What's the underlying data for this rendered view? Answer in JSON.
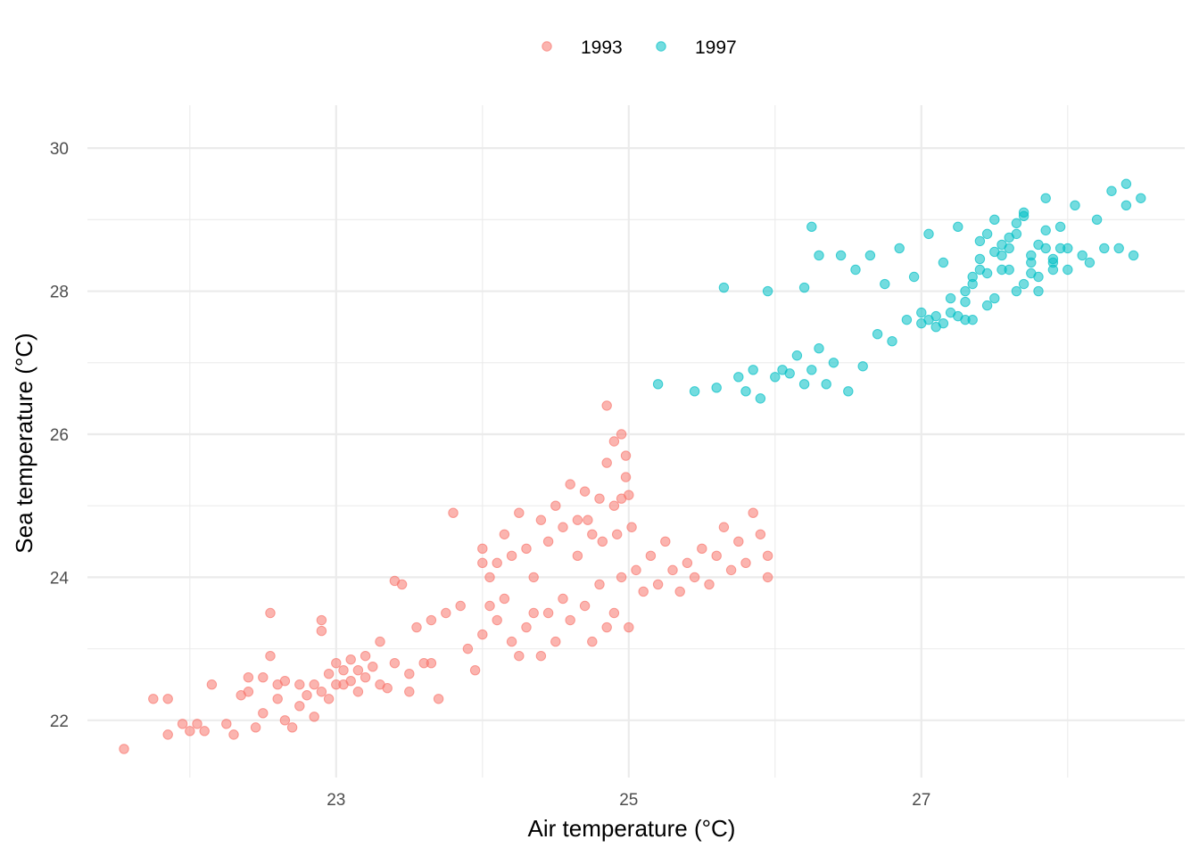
{
  "chart_data": {
    "type": "scatter",
    "xlabel": "Air temperature (°C)",
    "ylabel": "Sea temperature (°C)",
    "xlim": [
      21.3,
      28.8
    ],
    "ylim": [
      21.2,
      30.6
    ],
    "x_ticks": [
      23,
      25,
      27
    ],
    "y_ticks": [
      22,
      24,
      26,
      28,
      30
    ],
    "grid": true,
    "legend_position": "top",
    "series": [
      {
        "name": "1993",
        "color": "#F8766D",
        "points": [
          [
            21.55,
            21.6
          ],
          [
            21.75,
            22.3
          ],
          [
            21.85,
            22.3
          ],
          [
            21.85,
            21.8
          ],
          [
            21.95,
            21.95
          ],
          [
            22.0,
            21.85
          ],
          [
            22.05,
            21.95
          ],
          [
            22.1,
            21.85
          ],
          [
            22.15,
            22.5
          ],
          [
            22.25,
            21.95
          ],
          [
            22.3,
            21.8
          ],
          [
            22.35,
            22.35
          ],
          [
            22.4,
            22.4
          ],
          [
            22.4,
            22.6
          ],
          [
            22.45,
            21.9
          ],
          [
            22.5,
            22.1
          ],
          [
            22.5,
            22.6
          ],
          [
            22.55,
            22.9
          ],
          [
            22.55,
            23.5
          ],
          [
            22.6,
            22.5
          ],
          [
            22.6,
            22.3
          ],
          [
            22.65,
            22.55
          ],
          [
            22.65,
            22.0
          ],
          [
            22.7,
            21.9
          ],
          [
            22.75,
            22.5
          ],
          [
            22.75,
            22.2
          ],
          [
            22.8,
            22.35
          ],
          [
            22.85,
            22.5
          ],
          [
            22.85,
            22.05
          ],
          [
            22.9,
            22.4
          ],
          [
            22.9,
            23.4
          ],
          [
            22.9,
            23.25
          ],
          [
            22.95,
            22.65
          ],
          [
            22.95,
            22.3
          ],
          [
            23.0,
            22.5
          ],
          [
            23.0,
            22.8
          ],
          [
            23.05,
            22.7
          ],
          [
            23.05,
            22.5
          ],
          [
            23.1,
            22.85
          ],
          [
            23.1,
            22.55
          ],
          [
            23.15,
            22.7
          ],
          [
            23.15,
            22.4
          ],
          [
            23.2,
            22.9
          ],
          [
            23.2,
            22.6
          ],
          [
            23.25,
            22.75
          ],
          [
            23.3,
            22.5
          ],
          [
            23.3,
            23.1
          ],
          [
            23.35,
            22.45
          ],
          [
            23.4,
            22.8
          ],
          [
            23.4,
            23.95
          ],
          [
            23.45,
            23.9
          ],
          [
            23.5,
            22.65
          ],
          [
            23.5,
            22.4
          ],
          [
            23.55,
            23.3
          ],
          [
            23.6,
            22.8
          ],
          [
            23.65,
            22.8
          ],
          [
            23.65,
            23.4
          ],
          [
            23.7,
            22.3
          ],
          [
            23.75,
            23.5
          ],
          [
            23.8,
            24.9
          ],
          [
            23.85,
            23.6
          ],
          [
            23.9,
            23.0
          ],
          [
            23.95,
            22.7
          ],
          [
            24.0,
            23.2
          ],
          [
            24.0,
            24.2
          ],
          [
            24.05,
            23.6
          ],
          [
            24.1,
            23.4
          ],
          [
            24.15,
            23.7
          ],
          [
            24.2,
            23.1
          ],
          [
            24.25,
            22.9
          ],
          [
            24.3,
            23.3
          ],
          [
            24.35,
            23.5
          ],
          [
            24.4,
            22.9
          ],
          [
            24.45,
            23.5
          ],
          [
            24.5,
            23.1
          ],
          [
            24.55,
            23.7
          ],
          [
            24.6,
            23.4
          ],
          [
            24.65,
            24.3
          ],
          [
            24.7,
            23.6
          ],
          [
            24.75,
            23.1
          ],
          [
            24.8,
            23.9
          ],
          [
            24.85,
            23.3
          ],
          [
            24.9,
            23.5
          ],
          [
            24.95,
            24.0
          ],
          [
            25.0,
            23.3
          ],
          [
            25.05,
            24.1
          ],
          [
            25.1,
            23.8
          ],
          [
            25.15,
            24.3
          ],
          [
            25.2,
            23.9
          ],
          [
            25.25,
            24.5
          ],
          [
            25.3,
            24.1
          ],
          [
            25.35,
            23.8
          ],
          [
            25.4,
            24.2
          ],
          [
            25.45,
            24.0
          ],
          [
            25.5,
            24.4
          ],
          [
            25.55,
            23.9
          ],
          [
            25.6,
            24.3
          ],
          [
            25.65,
            24.7
          ],
          [
            25.7,
            24.1
          ],
          [
            25.75,
            24.5
          ],
          [
            25.8,
            24.2
          ],
          [
            25.85,
            24.9
          ],
          [
            25.9,
            24.6
          ],
          [
            25.95,
            24.3
          ],
          [
            25.95,
            24.0
          ],
          [
            24.0,
            24.4
          ],
          [
            24.05,
            24.0
          ],
          [
            24.1,
            24.2
          ],
          [
            24.15,
            24.6
          ],
          [
            24.2,
            24.3
          ],
          [
            24.25,
            24.9
          ],
          [
            24.3,
            24.4
          ],
          [
            24.35,
            24.0
          ],
          [
            24.4,
            24.8
          ],
          [
            24.45,
            24.5
          ],
          [
            24.5,
            25.0
          ],
          [
            24.55,
            24.7
          ],
          [
            24.6,
            25.3
          ],
          [
            24.65,
            24.8
          ],
          [
            24.7,
            25.2
          ],
          [
            24.75,
            24.6
          ],
          [
            24.8,
            25.1
          ],
          [
            24.85,
            25.6
          ],
          [
            24.9,
            25.0
          ],
          [
            24.95,
            25.1
          ],
          [
            24.85,
            26.4
          ],
          [
            24.9,
            25.9
          ],
          [
            24.95,
            26.0
          ],
          [
            24.98,
            25.7
          ],
          [
            24.98,
            25.4
          ],
          [
            25.0,
            25.15
          ],
          [
            25.02,
            24.7
          ],
          [
            24.92,
            24.6
          ],
          [
            24.82,
            24.5
          ],
          [
            24.72,
            24.8
          ]
        ]
      },
      {
        "name": "1997",
        "color": "#00BFC4",
        "points": [
          [
            25.2,
            26.7
          ],
          [
            25.45,
            26.6
          ],
          [
            25.6,
            26.65
          ],
          [
            25.65,
            28.05
          ],
          [
            25.75,
            26.8
          ],
          [
            25.8,
            26.6
          ],
          [
            25.85,
            26.9
          ],
          [
            25.9,
            26.5
          ],
          [
            25.95,
            28.0
          ],
          [
            26.0,
            26.8
          ],
          [
            26.05,
            26.9
          ],
          [
            26.1,
            26.85
          ],
          [
            26.15,
            27.1
          ],
          [
            26.2,
            26.7
          ],
          [
            26.25,
            26.9
          ],
          [
            26.3,
            27.2
          ],
          [
            26.35,
            26.7
          ],
          [
            26.4,
            27.0
          ],
          [
            26.45,
            28.5
          ],
          [
            26.5,
            26.6
          ],
          [
            26.55,
            28.3
          ],
          [
            26.6,
            26.95
          ],
          [
            26.65,
            28.5
          ],
          [
            26.7,
            27.4
          ],
          [
            26.75,
            28.1
          ],
          [
            26.8,
            27.3
          ],
          [
            26.85,
            28.6
          ],
          [
            26.9,
            27.6
          ],
          [
            26.95,
            28.2
          ],
          [
            27.0,
            27.7
          ],
          [
            27.05,
            28.8
          ],
          [
            27.1,
            27.5
          ],
          [
            27.15,
            28.4
          ],
          [
            27.2,
            27.9
          ],
          [
            27.25,
            28.9
          ],
          [
            27.3,
            27.6
          ],
          [
            27.35,
            28.1
          ],
          [
            27.4,
            28.7
          ],
          [
            27.45,
            27.8
          ],
          [
            27.5,
            29.0
          ],
          [
            27.55,
            28.3
          ],
          [
            27.6,
            28.6
          ],
          [
            27.65,
            28.0
          ],
          [
            27.7,
            29.1
          ],
          [
            27.75,
            28.5
          ],
          [
            27.8,
            28.2
          ],
          [
            27.85,
            29.3
          ],
          [
            27.9,
            28.4
          ],
          [
            27.95,
            28.9
          ],
          [
            28.0,
            28.6
          ],
          [
            28.05,
            29.2
          ],
          [
            28.1,
            28.5
          ],
          [
            28.15,
            28.4
          ],
          [
            28.2,
            29.0
          ],
          [
            28.25,
            28.6
          ],
          [
            28.3,
            29.4
          ],
          [
            28.35,
            28.6
          ],
          [
            28.4,
            29.2
          ],
          [
            28.45,
            28.5
          ],
          [
            28.5,
            29.3
          ],
          [
            28.4,
            29.5
          ],
          [
            26.2,
            28.05
          ],
          [
            26.25,
            28.9
          ],
          [
            26.3,
            28.5
          ],
          [
            27.3,
            28.0
          ],
          [
            27.35,
            27.6
          ],
          [
            27.4,
            28.3
          ],
          [
            27.45,
            28.8
          ],
          [
            27.5,
            27.9
          ],
          [
            27.55,
            28.5
          ],
          [
            27.6,
            28.3
          ],
          [
            27.65,
            28.8
          ],
          [
            27.7,
            28.1
          ],
          [
            27.75,
            28.4
          ],
          [
            27.8,
            28.0
          ],
          [
            27.85,
            28.6
          ],
          [
            27.9,
            28.3
          ],
          [
            27.95,
            28.6
          ],
          [
            28.0,
            28.3
          ],
          [
            27.0,
            27.55
          ],
          [
            27.05,
            27.6
          ],
          [
            27.1,
            27.65
          ],
          [
            27.15,
            27.55
          ],
          [
            27.2,
            27.7
          ],
          [
            27.25,
            27.65
          ],
          [
            27.3,
            27.85
          ],
          [
            27.35,
            28.2
          ],
          [
            27.4,
            28.45
          ],
          [
            27.45,
            28.25
          ],
          [
            27.5,
            28.55
          ],
          [
            27.55,
            28.65
          ],
          [
            27.6,
            28.75
          ],
          [
            27.65,
            28.95
          ],
          [
            27.7,
            29.05
          ],
          [
            27.75,
            28.25
          ],
          [
            27.8,
            28.65
          ],
          [
            27.85,
            28.85
          ],
          [
            27.9,
            28.45
          ]
        ]
      }
    ]
  }
}
